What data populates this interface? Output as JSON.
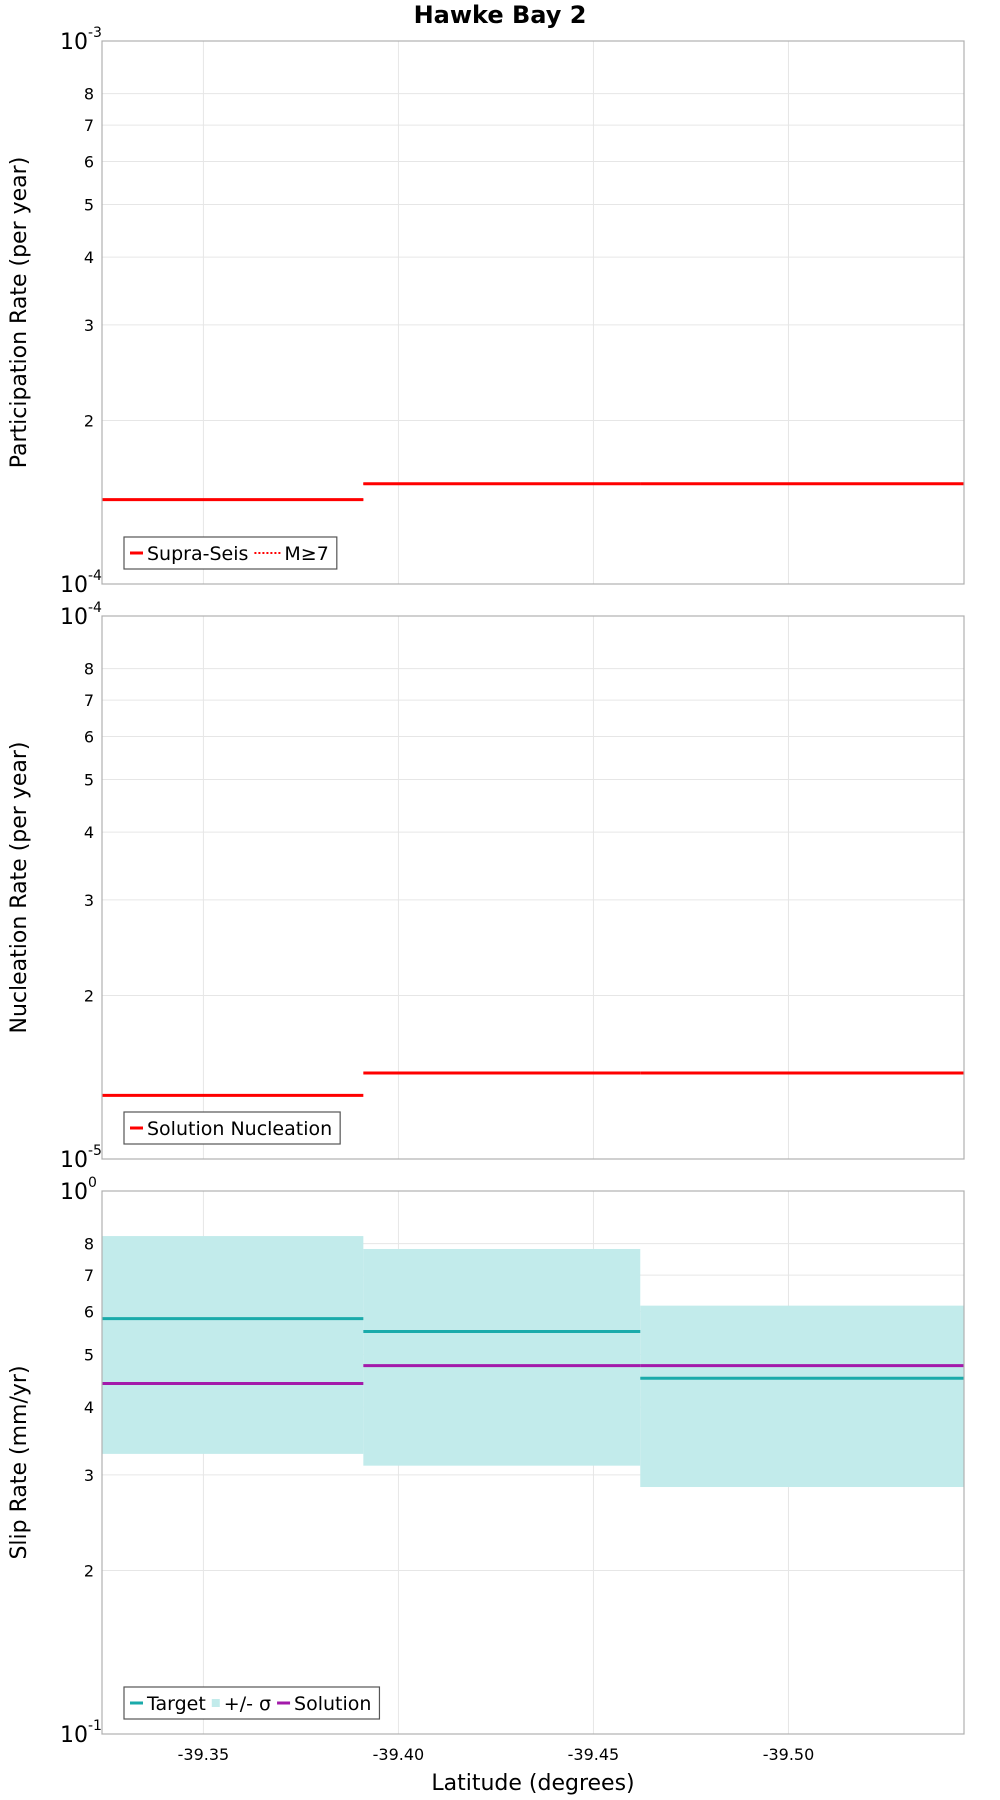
{
  "title": "Hawke Bay 2",
  "xlabel": "Latitude (degrees)",
  "colors": {
    "supra_seis": "#ff0000",
    "target": "#1aaaaa",
    "sigma_fill": "#c2ebeb",
    "solution": "#a31aaa"
  },
  "chart_data": [
    {
      "type": "line",
      "name": "participation",
      "ylabel": "Participation Rate (per year)",
      "yscale": "log",
      "ylim": [
        0.0001,
        0.001
      ],
      "xlim": [
        -39.324,
        -39.545
      ],
      "x_ticks": [
        "-39.35",
        "-39.40",
        "-39.45",
        "-39.50"
      ],
      "y_major_ticks": [
        {
          "base": "10",
          "exp": "-4"
        },
        {
          "base": "10",
          "exp": "-3"
        }
      ],
      "y_minor_ticks": [
        "2",
        "3",
        "4",
        "5",
        "6",
        "7",
        "8"
      ],
      "legend": {
        "position": "bottom-left",
        "entries": [
          "Supra-Seis",
          "M≥7"
        ]
      },
      "series": [
        {
          "name": "Supra-Seis",
          "style": "solid",
          "segments": [
            [
              -39.324,
              -39.391,
              0.000143
            ],
            [
              -39.391,
              -39.462,
              0.000153
            ],
            [
              -39.462,
              -39.545,
              0.000153
            ]
          ]
        },
        {
          "name": "M≥7",
          "style": "dotted",
          "segments": [
            [
              -39.324,
              -39.391,
              0.000143
            ],
            [
              -39.391,
              -39.462,
              0.000153
            ],
            [
              -39.462,
              -39.545,
              0.000153
            ]
          ]
        }
      ]
    },
    {
      "type": "line",
      "name": "nucleation",
      "ylabel": "Nucleation Rate (per year)",
      "yscale": "log",
      "ylim": [
        1e-05,
        0.0001
      ],
      "xlim": [
        -39.324,
        -39.545
      ],
      "x_ticks": [
        "-39.35",
        "-39.40",
        "-39.45",
        "-39.50"
      ],
      "y_major_ticks": [
        {
          "base": "10",
          "exp": "-5"
        },
        {
          "base": "10",
          "exp": "-4"
        }
      ],
      "y_minor_ticks": [
        "2",
        "3",
        "4",
        "5",
        "6",
        "7",
        "8"
      ],
      "legend": {
        "position": "bottom-left",
        "entries": [
          "Solution Nucleation"
        ]
      },
      "series": [
        {
          "name": "Solution Nucleation",
          "style": "solid",
          "segments": [
            [
              -39.324,
              -39.391,
              1.31e-05
            ],
            [
              -39.391,
              -39.462,
              1.44e-05
            ],
            [
              -39.462,
              -39.545,
              1.44e-05
            ]
          ]
        }
      ]
    },
    {
      "type": "line",
      "name": "slip",
      "ylabel": "Slip Rate (mm/yr)",
      "yscale": "log",
      "ylim": [
        0.1,
        1
      ],
      "xlim": [
        -39.324,
        -39.545
      ],
      "x_ticks": [
        "-39.35",
        "-39.40",
        "-39.45",
        "-39.50"
      ],
      "y_major_ticks": [
        {
          "base": "10",
          "exp": "-1"
        },
        {
          "base": "10",
          "exp": "0"
        }
      ],
      "y_minor_ticks": [
        "2",
        "3",
        "4",
        "5",
        "6",
        "7",
        "8"
      ],
      "legend": {
        "position": "bottom-left",
        "entries": [
          "Target",
          "+/- σ",
          "Solution"
        ]
      },
      "bands": [
        {
          "name": "+/- σ",
          "segments": [
            [
              -39.324,
              -39.391,
              0.328,
              0.826
            ],
            [
              -39.391,
              -39.462,
              0.312,
              0.782
            ],
            [
              -39.462,
              -39.545,
              0.285,
              0.615
            ]
          ]
        }
      ],
      "series": [
        {
          "name": "Target",
          "style": "solid",
          "segments": [
            [
              -39.324,
              -39.391,
              0.582
            ],
            [
              -39.391,
              -39.462,
              0.551
            ],
            [
              -39.462,
              -39.545,
              0.452
            ]
          ]
        },
        {
          "name": "Solution",
          "style": "solid",
          "segments": [
            [
              -39.324,
              -39.391,
              0.442
            ],
            [
              -39.391,
              -39.462,
              0.477
            ],
            [
              -39.462,
              -39.545,
              0.477
            ]
          ]
        }
      ]
    }
  ]
}
